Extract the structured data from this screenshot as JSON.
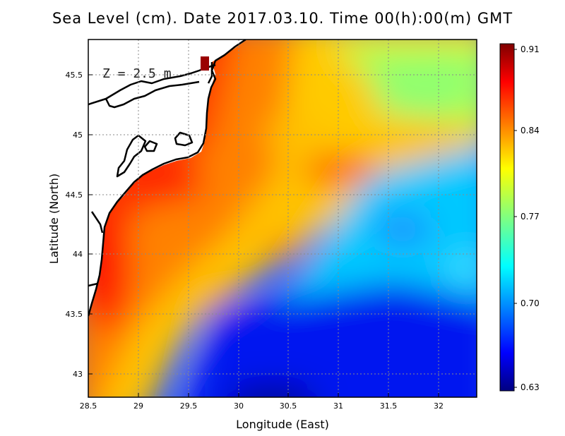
{
  "title": "Sea Level (cm). Date 2017.03.10. Time 00(h):00(m) GMT",
  "depth_label": "Z = 2.5 m",
  "colorbar": {
    "labels": [
      "0.91",
      "0.84",
      "0.77",
      "0.70",
      "0.63"
    ],
    "min": 0.63,
    "max": 0.91,
    "colormap": "jet"
  },
  "chart_data": {
    "type": "heatmap",
    "title": "Sea Level (cm). Date 2017.03.10. Time 00(h):00(m) GMT",
    "xlabel": "Longitude (East)",
    "ylabel": "Latitude (North)",
    "xlim": [
      28.5,
      32.4
    ],
    "ylim": [
      42.8,
      45.8
    ],
    "x_ticks": [
      "28.5",
      "29",
      "29.5",
      "30",
      "30.5",
      "31",
      "31.5",
      "32"
    ],
    "y_ticks": [
      "43",
      "43.5",
      "44",
      "44.5",
      "45",
      "45.5"
    ],
    "grid": true,
    "value_range": [
      0.63,
      0.91
    ],
    "features": [
      {
        "lon": 29.7,
        "lat": 45.6,
        "value": 0.91
      },
      {
        "lon": 28.7,
        "lat": 44.2,
        "value": 0.89
      },
      {
        "lon": 30.45,
        "lat": 44.05,
        "value": 0.83
      },
      {
        "lon": 30.9,
        "lat": 44.65,
        "value": 0.84
      },
      {
        "lon": 31.6,
        "lat": 45.45,
        "value": 0.77
      },
      {
        "lon": 31.7,
        "lat": 44.2,
        "value": 0.69
      },
      {
        "lon": 30.3,
        "lat": 42.9,
        "value": 0.63
      },
      {
        "lon": 32.3,
        "lat": 43.9,
        "value": 0.73
      }
    ]
  }
}
